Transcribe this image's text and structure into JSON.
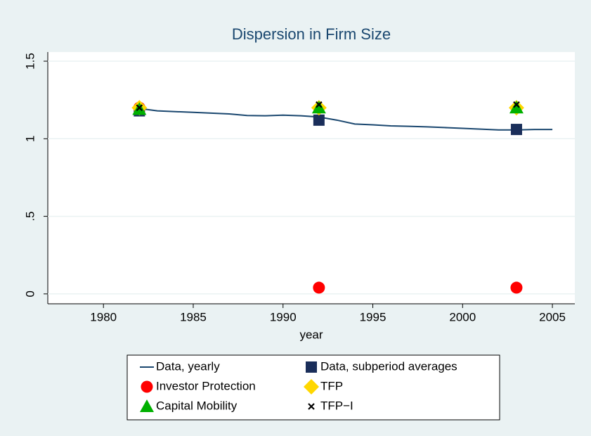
{
  "chart_data": {
    "type": "scatter",
    "title": "Dispersion in Firm Size",
    "x_label": "year",
    "xlim": [
      1976.9,
      2006.25
    ],
    "xticks": [
      1980,
      1985,
      1990,
      1995,
      2000,
      2005
    ],
    "ylim": [
      -0.064,
      1.559
    ],
    "yticks": [
      0,
      {
        "value": 0.5,
        "label": ".5"
      },
      1,
      1.5
    ],
    "grid": true,
    "legend": "bottom",
    "series": [
      {
        "name": "Data, yearly",
        "color": "#1a476f",
        "marker": "line",
        "x": [
          1982,
          1983,
          1984,
          1985,
          1986,
          1987,
          1988,
          1989,
          1990,
          1991,
          1992,
          1993,
          1994,
          1995,
          1996,
          1997,
          1998,
          1999,
          2000,
          2001,
          2002,
          2003,
          2004,
          2005
        ],
        "values": [
          1.195,
          1.18,
          1.175,
          1.17,
          1.165,
          1.16,
          1.15,
          1.148,
          1.152,
          1.148,
          1.14,
          1.12,
          1.095,
          1.09,
          1.083,
          1.08,
          1.077,
          1.072,
          1.067,
          1.062,
          1.057,
          1.057,
          1.06,
          1.06
        ]
      },
      {
        "name": "Data, subperiod averages",
        "color": "#1a2e5a",
        "marker": "square",
        "x": [
          1982,
          1992,
          2003
        ],
        "values": [
          1.18,
          1.12,
          1.06
        ]
      },
      {
        "name": "Investor Protection",
        "color": "#ff0000",
        "marker": "circle",
        "x": [
          1982,
          1992,
          2003
        ],
        "values": [
          1.2,
          0.04,
          0.04
        ]
      },
      {
        "name": "TFP",
        "color": "#ffd700",
        "marker": "diamond",
        "x": [
          1982,
          1992,
          2003
        ],
        "values": [
          1.2,
          1.2,
          1.2
        ]
      },
      {
        "name": "Capital Mobility",
        "color": "#00b000",
        "marker": "triangle",
        "x": [
          1982,
          1992,
          2003
        ],
        "values": [
          1.19,
          1.2,
          1.2
        ]
      },
      {
        "name": "TFP−I",
        "color": "#000000",
        "marker": "x",
        "x": [
          1982,
          1992,
          2003
        ],
        "values": [
          1.2,
          1.22,
          1.22
        ]
      }
    ]
  }
}
